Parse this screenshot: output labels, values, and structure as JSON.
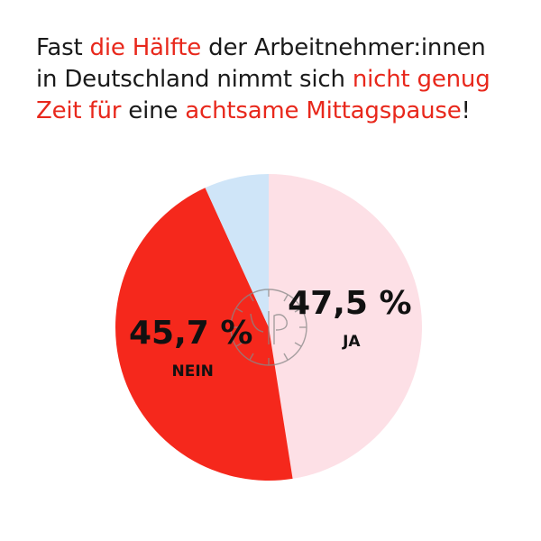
{
  "headline": {
    "line1": [
      {
        "text": "Fast ",
        "highlight": false
      },
      {
        "text": "die Hälfte",
        "highlight": true
      },
      {
        "text": " der Arbeitnehmer:innen",
        "highlight": false
      }
    ],
    "line2": [
      {
        "text": "in Deutschland nimmt sich ",
        "highlight": false
      },
      {
        "text": "nicht genug",
        "highlight": true
      }
    ],
    "line3": [
      {
        "text": "Zeit für",
        "highlight": true
      },
      {
        "text": " eine ",
        "highlight": false
      },
      {
        "text": "achtsame Mittagspause",
        "highlight": true
      },
      {
        "text": "!",
        "highlight": false
      }
    ]
  },
  "colors": {
    "text": "#1a1a1a",
    "highlight": "#e8281c",
    "ja": "#fde0e6",
    "nein": "#f5281c",
    "other": "#cfe5f8",
    "watermark": "#888888"
  },
  "watermark_icon": "clock-logo-icon",
  "chart_data": {
    "type": "pie",
    "start": "12 o'clock",
    "direction": "clockwise",
    "slices": [
      {
        "category": "JA",
        "value": 47.5,
        "value_label": "47,5 %",
        "color": "#fde0e6",
        "labeled": true
      },
      {
        "category": "NEIN",
        "value": 45.7,
        "value_label": "45,7 %",
        "color": "#f5281c",
        "labeled": true
      },
      {
        "category": "",
        "value": 6.8,
        "value_label": "",
        "color": "#cfe5f8",
        "labeled": false
      }
    ]
  }
}
